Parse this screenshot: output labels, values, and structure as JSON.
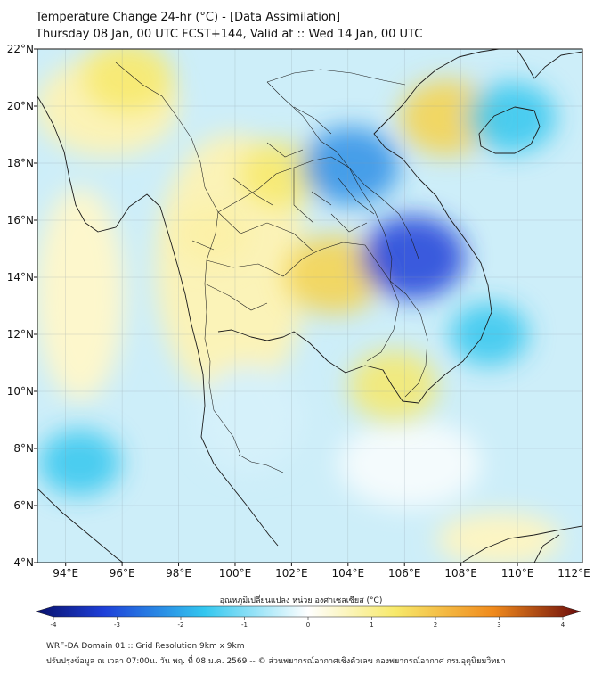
{
  "header": {
    "title_line1": "Temperature Change 24-hr (°C) - [Data Assimilation]",
    "title_line2": "Thursday 08 Jan, 00 UTC FCST+144, Valid at :: Wed 14 Jan, 00 UTC"
  },
  "map": {
    "lat_labels": [
      "22°N",
      "20°N",
      "18°N",
      "16°N",
      "14°N",
      "12°N",
      "10°N",
      "8°N",
      "6°N",
      "4°N"
    ],
    "lon_labels": [
      "94°E",
      "96°E",
      "98°E",
      "100°E",
      "102°E",
      "104°E",
      "106°E",
      "108°E",
      "110°E",
      "112°E"
    ],
    "lat_range": [
      4,
      22
    ],
    "lon_range": [
      93,
      112.3
    ],
    "anomalies": [
      {
        "name": "warm-myanmar-north",
        "lon": 96.2,
        "lat": 21.0,
        "value": 1.2
      },
      {
        "name": "warm-hainan-west",
        "lon": 107.5,
        "lat": 19.6,
        "value": 1.4
      },
      {
        "name": "warm-cambodia-west",
        "lon": 103.5,
        "lat": 14.1,
        "value": 1.5
      },
      {
        "name": "warm-mekong-delta",
        "lon": 105.6,
        "lat": 10.2,
        "value": 1.2
      },
      {
        "name": "warm-north-thailand",
        "lon": 101.6,
        "lat": 17.6,
        "value": 1.0
      },
      {
        "name": "warm-west-thailand",
        "lon": 99.2,
        "lat": 15.5,
        "value": 0.8
      },
      {
        "name": "cold-laos-east",
        "lon": 104.1,
        "lat": 17.9,
        "value": -1.5
      },
      {
        "name": "cold-cambodia-east",
        "lon": 106.3,
        "lat": 14.7,
        "value": -1.7
      },
      {
        "name": "cold-gulf-tonkin",
        "lon": 109.8,
        "lat": 19.6,
        "value": -1.2
      },
      {
        "name": "cold-andaman",
        "lon": 94.5,
        "lat": 7.5,
        "value": -1.0
      },
      {
        "name": "cold-south-china-sea",
        "lon": 109.0,
        "lat": 12.0,
        "value": -0.9
      }
    ]
  },
  "colorbar": {
    "label": "อุณหภูมิเปลี่ยนแปลง หน่วย องศาเซลเซียส (°C)",
    "ticks": [
      "-4",
      "-3",
      "-2",
      "-1",
      "0",
      "1",
      "2",
      "3",
      "4"
    ],
    "min": -4,
    "max": 4,
    "colors": {
      "min": "#08106a",
      "blue": "#1e3fd8",
      "cyan": "#33c7ef",
      "white": "#ffffff",
      "yellow": "#f7e96a",
      "orange": "#f08a1c",
      "max": "#6b0b0b"
    }
  },
  "footer": {
    "line1": "WRF-DA Domain 01 :: Grid Resolution 9km x 9km",
    "line2": "ปรับปรุงข้อมูล ณ เวลา 07:00น. วัน พฤ. ที่ 08 ม.ค. 2569 -- © ส่วนพยากรณ์อากาศเชิงตัวเลข กองพยากรณ์อากาศ กรมอุตุนิยมวิทยา"
  }
}
